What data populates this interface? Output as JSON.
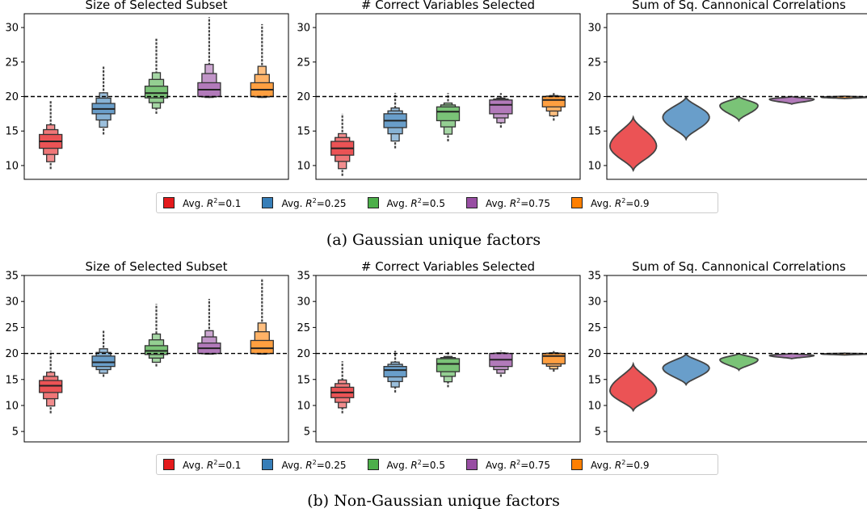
{
  "colors": [
    "#e41a1c",
    "#377eb8",
    "#4daf4a",
    "#984ea3",
    "#ff7f00"
  ],
  "legend": [
    {
      "prefix": "Avg. ",
      "sym": "R",
      "sup": "2",
      "suffix": "=0.1",
      "color": "#e41a1c"
    },
    {
      "prefix": "Avg. ",
      "sym": "R",
      "sup": "2",
      "suffix": "=0.25",
      "color": "#377eb8"
    },
    {
      "prefix": "Avg. ",
      "sym": "R",
      "sup": "2",
      "suffix": "=0.5",
      "color": "#4daf4a"
    },
    {
      "prefix": "Avg. ",
      "sym": "R",
      "sup": "2",
      "suffix": "=0.75",
      "color": "#984ea3"
    },
    {
      "prefix": "Avg. ",
      "sym": "R",
      "sup": "2",
      "suffix": "=0.9",
      "color": "#ff7f00"
    }
  ],
  "captions": [
    "(a) Gaussian unique factors",
    "(b) Non-Gaussian unique factors"
  ],
  "chart_data": [
    {
      "panel": "a-1",
      "type": "boxen",
      "title": "Size of Selected Subset",
      "ylim": [
        8,
        32
      ],
      "yticks": [
        10,
        15,
        20,
        25,
        30
      ],
      "reference_line": 20,
      "series": [
        {
          "min": 9.5,
          "q1": 12.5,
          "median": 13.5,
          "q3": 14.5,
          "max": 19.5
        },
        {
          "min": 14.5,
          "q1": 17.5,
          "median": 18.2,
          "q3": 19,
          "max": 24.5
        },
        {
          "min": 17.5,
          "q1": 19.8,
          "median": 20.5,
          "q3": 21.5,
          "max": 28.5
        },
        {
          "min": 19.8,
          "q1": 20,
          "median": 21,
          "q3": 22,
          "max": 31.5
        },
        {
          "min": 19.8,
          "q1": 20,
          "median": 21,
          "q3": 22,
          "max": 30.5
        }
      ]
    },
    {
      "panel": "a-2",
      "type": "boxen",
      "title": "# Correct Variables Selected",
      "ylim": [
        8,
        32
      ],
      "yticks": [
        10,
        15,
        20,
        25,
        30
      ],
      "reference_line": 20,
      "series": [
        {
          "min": 8.5,
          "q1": 11.5,
          "median": 12.5,
          "q3": 13.5,
          "max": 17.5
        },
        {
          "min": 12.5,
          "q1": 15.5,
          "median": 16.5,
          "q3": 17.5,
          "max": 20.5
        },
        {
          "min": 13.5,
          "q1": 16.5,
          "median": 17.8,
          "q3": 18.5,
          "max": 20.5
        },
        {
          "min": 15.5,
          "q1": 17.5,
          "median": 18.8,
          "q3": 19.5,
          "max": 20.5
        },
        {
          "min": 16.5,
          "q1": 18.5,
          "median": 19.5,
          "q3": 20,
          "max": 20.5
        }
      ]
    },
    {
      "panel": "a-3",
      "type": "violin",
      "title": "Sum of Sq. Cannonical Correlations",
      "ylim": [
        8,
        32
      ],
      "yticks": [
        10,
        15,
        20,
        25,
        30
      ],
      "reference_line": 20,
      "series": [
        {
          "min": 9.3,
          "mode": 12.8,
          "max": 17,
          "width": 0.44
        },
        {
          "min": 13.8,
          "mode": 17,
          "max": 19.9,
          "width": 0.44
        },
        {
          "min": 16.5,
          "mode": 18.7,
          "max": 20,
          "width": 0.36
        },
        {
          "min": 18.9,
          "mode": 19.6,
          "max": 20,
          "width": 0.42
        },
        {
          "min": 19.7,
          "mode": 19.9,
          "max": 20.05,
          "width": 0.44
        }
      ]
    },
    {
      "panel": "b-1",
      "type": "boxen",
      "title": "Size of Selected Subset",
      "ylim": [
        3,
        35
      ],
      "yticks": [
        5,
        10,
        15,
        20,
        25,
        30,
        35
      ],
      "reference_line": 20,
      "series": [
        {
          "min": 8.5,
          "q1": 12.5,
          "median": 13.8,
          "q3": 14.8,
          "max": 20.5
        },
        {
          "min": 15.5,
          "q1": 17.5,
          "median": 18.3,
          "q3": 19.5,
          "max": 24.5
        },
        {
          "min": 17.5,
          "q1": 19.8,
          "median": 20.5,
          "q3": 21.5,
          "max": 29.5
        },
        {
          "min": 19.8,
          "q1": 20,
          "median": 21,
          "q3": 22,
          "max": 30.5
        },
        {
          "min": 19.8,
          "q1": 20,
          "median": 21,
          "q3": 22.5,
          "max": 34.5
        }
      ]
    },
    {
      "panel": "b-2",
      "type": "boxen",
      "title": "# Correct Variables Selected",
      "ylim": [
        3,
        35
      ],
      "yticks": [
        5,
        10,
        15,
        20,
        25,
        30,
        35
      ],
      "reference_line": 20,
      "series": [
        {
          "min": 8.5,
          "q1": 11.5,
          "median": 12.5,
          "q3": 13.5,
          "max": 18.5
        },
        {
          "min": 12.5,
          "q1": 15.5,
          "median": 16.8,
          "q3": 17.5,
          "max": 20.5
        },
        {
          "min": 13.5,
          "q1": 16.5,
          "median": 18,
          "q3": 19,
          "max": 20.5
        },
        {
          "min": 15.5,
          "q1": 17.5,
          "median": 18.8,
          "q3": 20,
          "max": 20.5
        },
        {
          "min": 16.5,
          "q1": 18,
          "median": 19.5,
          "q3": 20,
          "max": 20.5
        }
      ]
    },
    {
      "panel": "b-3",
      "type": "violin",
      "title": "Sum of Sq. Cannonical Correlations",
      "ylim": [
        3,
        35
      ],
      "yticks": [
        5,
        10,
        15,
        20,
        25,
        30,
        35
      ],
      "reference_line": 20,
      "series": [
        {
          "min": 9,
          "mode": 12.8,
          "max": 18,
          "width": 0.44
        },
        {
          "min": 14,
          "mode": 17.2,
          "max": 19.9,
          "width": 0.44
        },
        {
          "min": 16.8,
          "mode": 18.8,
          "max": 20,
          "width": 0.36
        },
        {
          "min": 19,
          "mode": 19.6,
          "max": 20,
          "width": 0.42
        },
        {
          "min": 19.7,
          "mode": 19.9,
          "max": 20.05,
          "width": 0.44
        }
      ]
    }
  ]
}
